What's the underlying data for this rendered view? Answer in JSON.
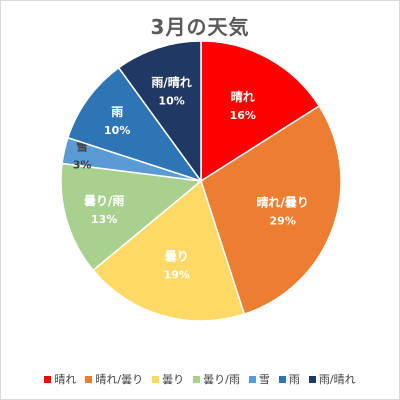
{
  "chart_data": {
    "type": "pie",
    "title": "3月の天気",
    "legend_position": "bottom",
    "start_angle": "12 o'clock, clockwise",
    "slices": [
      {
        "label": "晴れ",
        "value": 16,
        "display": "16%",
        "color": "#ff0000",
        "text_color": "#ffffff"
      },
      {
        "label": "晴れ/曇り",
        "value": 29,
        "display": "29%",
        "color": "#ed7d31",
        "text_color": "#ffffff"
      },
      {
        "label": "曇り",
        "value": 19,
        "display": "19%",
        "color": "#ffd966",
        "text_color": "#ffffff"
      },
      {
        "label": "曇り/雨",
        "value": 13,
        "display": "13%",
        "color": "#a9d08e",
        "text_color": "#ffffff"
      },
      {
        "label": "雪",
        "value": 3,
        "display": "3%",
        "color": "#5b9bd5",
        "text_color": "#404040"
      },
      {
        "label": "雨",
        "value": 10,
        "display": "10%",
        "color": "#2e75b6",
        "text_color": "#ffffff"
      },
      {
        "label": "雨/晴れ",
        "value": 10,
        "display": "10%",
        "color": "#203864",
        "text_color": "#ffffff"
      }
    ]
  }
}
